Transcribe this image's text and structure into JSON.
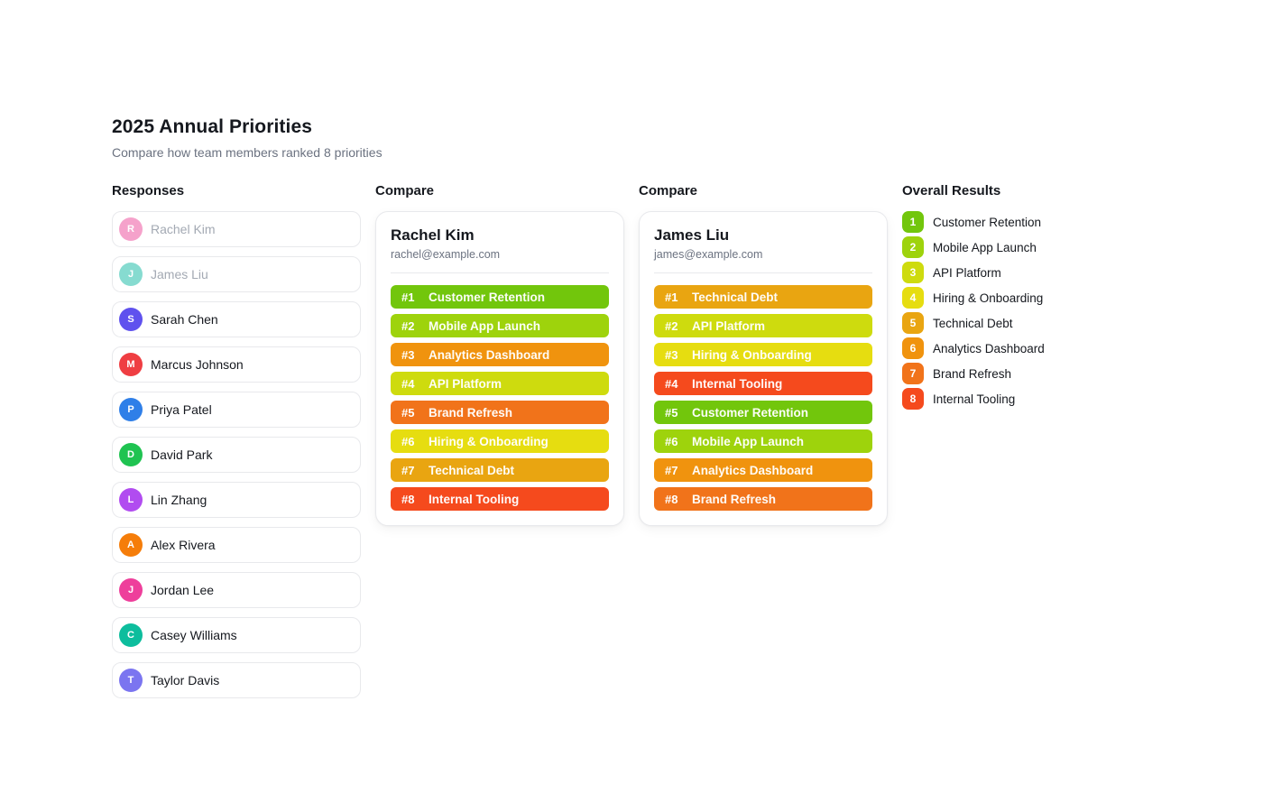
{
  "page": {
    "title": "2025 Annual Priorities",
    "subtitle": "Compare how team members ranked 8 priorities"
  },
  "columns": {
    "responses_header": "Responses",
    "compare1_header": "Compare",
    "compare2_header": "Compare",
    "overall_header": "Overall Results"
  },
  "responses": [
    {
      "name": "Rachel Kim",
      "initial": "R",
      "color": "#ec4899",
      "faded": true
    },
    {
      "name": "James Liu",
      "initial": "J",
      "color": "#10b9a3",
      "faded": true
    },
    {
      "name": "Sarah Chen",
      "initial": "S",
      "color": "#5f51ee",
      "faded": false
    },
    {
      "name": "Marcus Johnson",
      "initial": "M",
      "color": "#ef3e42",
      "faded": false
    },
    {
      "name": "Priya Patel",
      "initial": "P",
      "color": "#2f7fe8",
      "faded": false
    },
    {
      "name": "David Park",
      "initial": "D",
      "color": "#1fc351",
      "faded": false
    },
    {
      "name": "Lin Zhang",
      "initial": "L",
      "color": "#b14cf0",
      "faded": false
    },
    {
      "name": "Alex Rivera",
      "initial": "A",
      "color": "#f57d0a",
      "faded": false
    },
    {
      "name": "Jordan Lee",
      "initial": "J",
      "color": "#ee3f9b",
      "faded": false
    },
    {
      "name": "Casey Williams",
      "initial": "C",
      "color": "#0dbd9d",
      "faded": false
    },
    {
      "name": "Taylor Davis",
      "initial": "T",
      "color": "#7b75f0",
      "faded": false
    }
  ],
  "compare_cards": [
    {
      "name": "Rachel Kim",
      "email": "rachel@example.com",
      "rankings": [
        {
          "rank": "#1",
          "label": "Customer Retention",
          "color": "#72c60c"
        },
        {
          "rank": "#2",
          "label": "Mobile App Launch",
          "color": "#9ed30c"
        },
        {
          "rank": "#3",
          "label": "Analytics Dashboard",
          "color": "#f0930e"
        },
        {
          "rank": "#4",
          "label": "API Platform",
          "color": "#cedb0e"
        },
        {
          "rank": "#5",
          "label": "Brand Refresh",
          "color": "#f1731a"
        },
        {
          "rank": "#6",
          "label": "Hiring & Onboarding",
          "color": "#e6dd10"
        },
        {
          "rank": "#7",
          "label": "Technical Debt",
          "color": "#e9a511"
        },
        {
          "rank": "#8",
          "label": "Internal Tooling",
          "color": "#f54a1d"
        }
      ]
    },
    {
      "name": "James Liu",
      "email": "james@example.com",
      "rankings": [
        {
          "rank": "#1",
          "label": "Technical Debt",
          "color": "#e9a511"
        },
        {
          "rank": "#2",
          "label": "API Platform",
          "color": "#cedb0e"
        },
        {
          "rank": "#3",
          "label": "Hiring & Onboarding",
          "color": "#e6dd10"
        },
        {
          "rank": "#4",
          "label": "Internal Tooling",
          "color": "#f54a1d"
        },
        {
          "rank": "#5",
          "label": "Customer Retention",
          "color": "#72c60c"
        },
        {
          "rank": "#6",
          "label": "Mobile App Launch",
          "color": "#9ed30c"
        },
        {
          "rank": "#7",
          "label": "Analytics Dashboard",
          "color": "#f0930e"
        },
        {
          "rank": "#8",
          "label": "Brand Refresh",
          "color": "#f1731a"
        }
      ]
    }
  ],
  "overall_results": [
    {
      "rank": "1",
      "label": "Customer Retention",
      "color": "#72c60c"
    },
    {
      "rank": "2",
      "label": "Mobile App Launch",
      "color": "#9ed30c"
    },
    {
      "rank": "3",
      "label": "API Platform",
      "color": "#cedb0e"
    },
    {
      "rank": "4",
      "label": "Hiring & Onboarding",
      "color": "#e6dd10"
    },
    {
      "rank": "5",
      "label": "Technical Debt",
      "color": "#e9a511"
    },
    {
      "rank": "6",
      "label": "Analytics Dashboard",
      "color": "#f0930e"
    },
    {
      "rank": "7",
      "label": "Brand Refresh",
      "color": "#f1731a"
    },
    {
      "rank": "8",
      "label": "Internal Tooling",
      "color": "#f54a1d"
    }
  ]
}
